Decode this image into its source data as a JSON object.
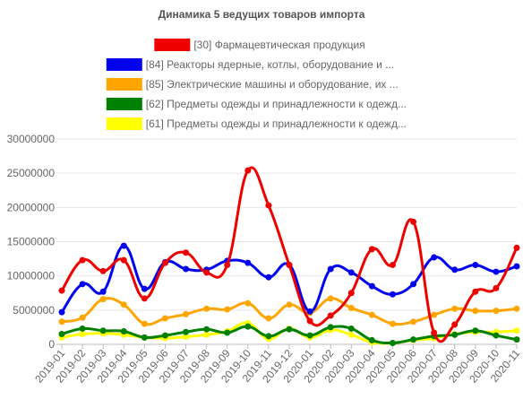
{
  "chart_data": {
    "type": "line",
    "title": "Динамика 5 ведущих товаров импорта",
    "categories": [
      "2019-01",
      "2019-02",
      "2019-03",
      "2019-04",
      "2019-05",
      "2019-06",
      "2019-07",
      "2019-08",
      "2019-09",
      "2019-10",
      "2019-11",
      "2019-12",
      "2020-01",
      "2020-02",
      "2020-03",
      "2020-04",
      "2020-05",
      "2020-06",
      "2020-07",
      "2020-08",
      "2020-09",
      "2020-10",
      "2020-11"
    ],
    "series": [
      {
        "name": "[30] Фармацевтическая продукция",
        "color": "#ee0000",
        "values": [
          7850000,
          12300000,
          10700000,
          12300000,
          6700000,
          11900000,
          13400000,
          10500000,
          11600000,
          25400000,
          20300000,
          11600000,
          3400000,
          4200000,
          7500000,
          13900000,
          11600000,
          17900000,
          1700000,
          2900000,
          7700000,
          8200000,
          14100000
        ]
      },
      {
        "name": "[84] Реакторы ядерные, котлы, оборудование и ...",
        "color": "#0000ee",
        "values": [
          4700000,
          8800000,
          7700000,
          14400000,
          8100000,
          12000000,
          11000000,
          10900000,
          12200000,
          11900000,
          9800000,
          11600000,
          4800000,
          11000000,
          10500000,
          8500000,
          7300000,
          8800000,
          12700000,
          10900000,
          11600000,
          10600000,
          11400000
        ]
      },
      {
        "name": "[85] Электрические машины и оборудование, их ...",
        "color": "#ffa500",
        "values": [
          3300000,
          3900000,
          6600000,
          5800000,
          3000000,
          3800000,
          4400000,
          5200000,
          5100000,
          6000000,
          3800000,
          5800000,
          4600000,
          6700000,
          5300000,
          4300000,
          3000000,
          3300000,
          4300000,
          5200000,
          4900000,
          4900000,
          5200000
        ]
      },
      {
        "name": "[62] Предметы одежды и принадлежности к одежд...",
        "color": "#008000",
        "values": [
          1500000,
          2300000,
          2000000,
          1900000,
          1000000,
          1300000,
          1800000,
          2200000,
          1700000,
          2600000,
          1200000,
          2200000,
          1300000,
          2500000,
          2300000,
          600000,
          200000,
          700000,
          1200000,
          1400000,
          2000000,
          1300000,
          700000
        ]
      },
      {
        "name": "[61] Предметы одежды и принадлежности к одежд...",
        "color": "#ffff00",
        "values": [
          1000000,
          1500000,
          1600000,
          1400000,
          1000000,
          900000,
          1100000,
          1400000,
          1900000,
          3100000,
          800000,
          2300000,
          1000000,
          2100000,
          1400000,
          300000,
          200000,
          600000,
          900000,
          1500000,
          1800000,
          1800000,
          2000000
        ]
      }
    ],
    "ylim": [
      0,
      30000000
    ],
    "yticks": [
      0,
      5000000,
      10000000,
      15000000,
      20000000,
      25000000,
      30000000
    ],
    "grid": true
  }
}
